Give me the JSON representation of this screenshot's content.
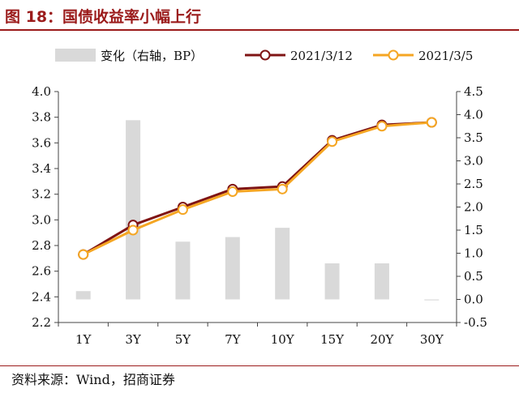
{
  "page": {
    "title": "图 18：国债收益率小幅上行",
    "source": "资料来源：Wind，招商证券"
  },
  "colors": {
    "accent": "#9b1b1b",
    "bar": "#d9d9d9",
    "series_1": "#7f1414",
    "series_2": "#f5a623"
  },
  "chart_data": {
    "type": "bar+line",
    "categories": [
      "1Y",
      "3Y",
      "5Y",
      "7Y",
      "10Y",
      "15Y",
      "20Y",
      "30Y"
    ],
    "bar_series": {
      "name": "变化（右轴，BP）",
      "axis": "right",
      "values": [
        0.18,
        3.88,
        1.25,
        1.35,
        1.55,
        0.78,
        0.78,
        -0.02
      ]
    },
    "series": [
      {
        "name": "2021/3/12",
        "axis": "left",
        "values": [
          2.73,
          2.96,
          3.1,
          3.24,
          3.26,
          3.62,
          3.74,
          3.76
        ]
      },
      {
        "name": "2021/3/5",
        "axis": "left",
        "values": [
          2.73,
          2.92,
          3.08,
          3.22,
          3.24,
          3.61,
          3.73,
          3.76
        ]
      }
    ],
    "ylim_left": [
      2.2,
      4.0
    ],
    "yticks_left": [
      "4.0",
      "3.8",
      "3.6",
      "3.4",
      "3.2",
      "3.0",
      "2.8",
      "2.6",
      "2.4",
      "2.2"
    ],
    "ylim_right": [
      -0.5,
      4.5
    ],
    "yticks_right": [
      "4.5",
      "4.0",
      "3.5",
      "3.0",
      "2.5",
      "2.0",
      "1.5",
      "1.0",
      "0.5",
      "0.0",
      "-0.5"
    ],
    "legend_position": "top",
    "grid": false
  }
}
